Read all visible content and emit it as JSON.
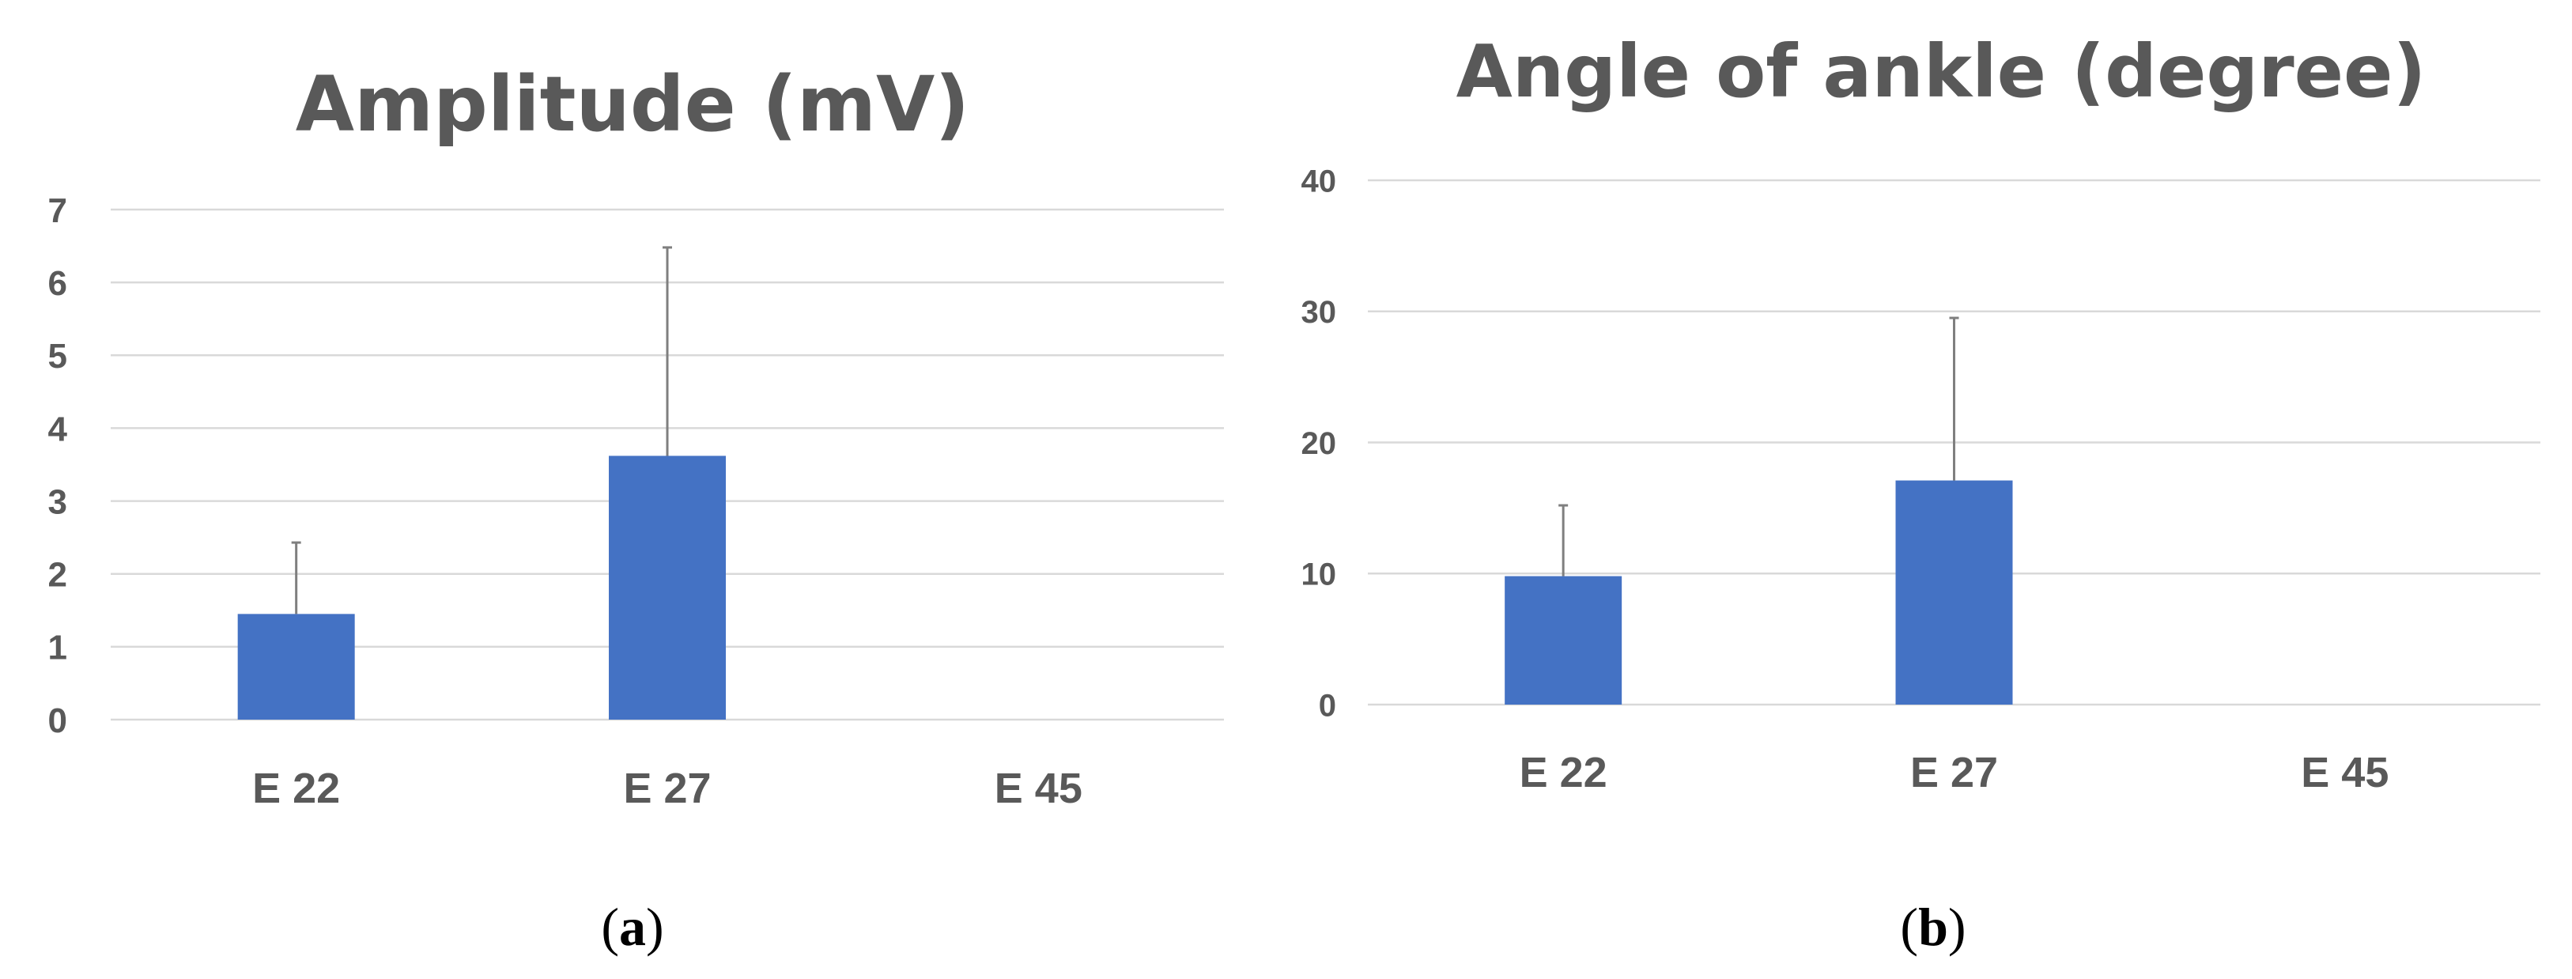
{
  "chart_data": [
    {
      "type": "bar",
      "title": "Amplitude (mV)",
      "panel_label": "a",
      "categories": [
        "E 22",
        "E 27",
        "E 45"
      ],
      "values": [
        1.45,
        3.62,
        0
      ],
      "error_upper": [
        0.98,
        2.86,
        0
      ],
      "ylim": [
        0,
        7
      ],
      "yticks": [
        "0",
        "1",
        "2",
        "3",
        "4",
        "5",
        "6",
        "7"
      ],
      "grid": true,
      "bar_color": "#4472C4"
    },
    {
      "type": "bar",
      "title": "Angle of ankle (degree)",
      "panel_label": "b",
      "categories": [
        "E 22",
        "E 27",
        "E 45"
      ],
      "values": [
        9.8,
        17.1,
        0
      ],
      "error_upper": [
        5.4,
        12.4,
        0
      ],
      "ylim": [
        0,
        40
      ],
      "yticks": [
        "0",
        "10",
        "20",
        "30",
        "40"
      ],
      "grid": true,
      "bar_color": "#4472C4"
    }
  ],
  "colors": {
    "gridline": "#D9D9D9",
    "text": "#595959",
    "error_bar": "#7F7F7F"
  }
}
